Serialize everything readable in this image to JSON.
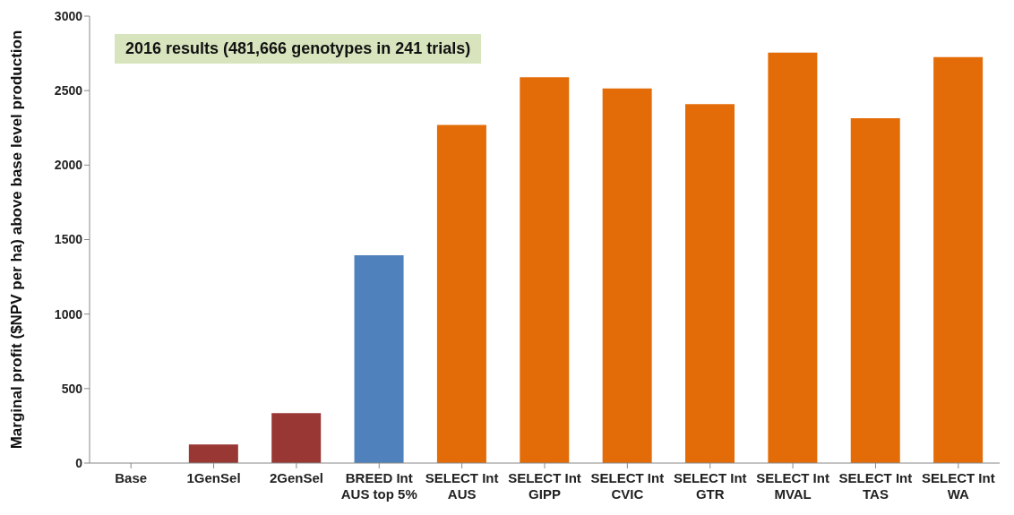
{
  "chart_data": {
    "type": "bar",
    "ylabel": "Marginal profit ($NPV per ha) above base level production",
    "categories": [
      "Base",
      "1GenSel",
      "2GenSel",
      "BREED Int AUS top 5%",
      "SELECT Int AUS",
      "SELECT Int GIPP",
      "SELECT Int CVIC",
      "SELECT Int GTR",
      "SELECT Int MVAL",
      "SELECT Int TAS",
      "SELECT Int WA"
    ],
    "values": [
      0,
      125,
      335,
      1395,
      2270,
      2590,
      2515,
      2410,
      2755,
      2315,
      2725
    ],
    "colors": [
      "#993735",
      "#993735",
      "#993735",
      "#4f81bd",
      "#e36c09",
      "#e36c09",
      "#e36c09",
      "#e36c09",
      "#e36c09",
      "#e36c09",
      "#e36c09"
    ],
    "ylim": [
      0,
      3000
    ],
    "yticks": [
      0,
      500,
      1000,
      1500,
      2000,
      2500,
      3000
    ],
    "grid": false,
    "annotations": [
      "2016 results (481,666 genotypes in 241 trials)"
    ]
  }
}
